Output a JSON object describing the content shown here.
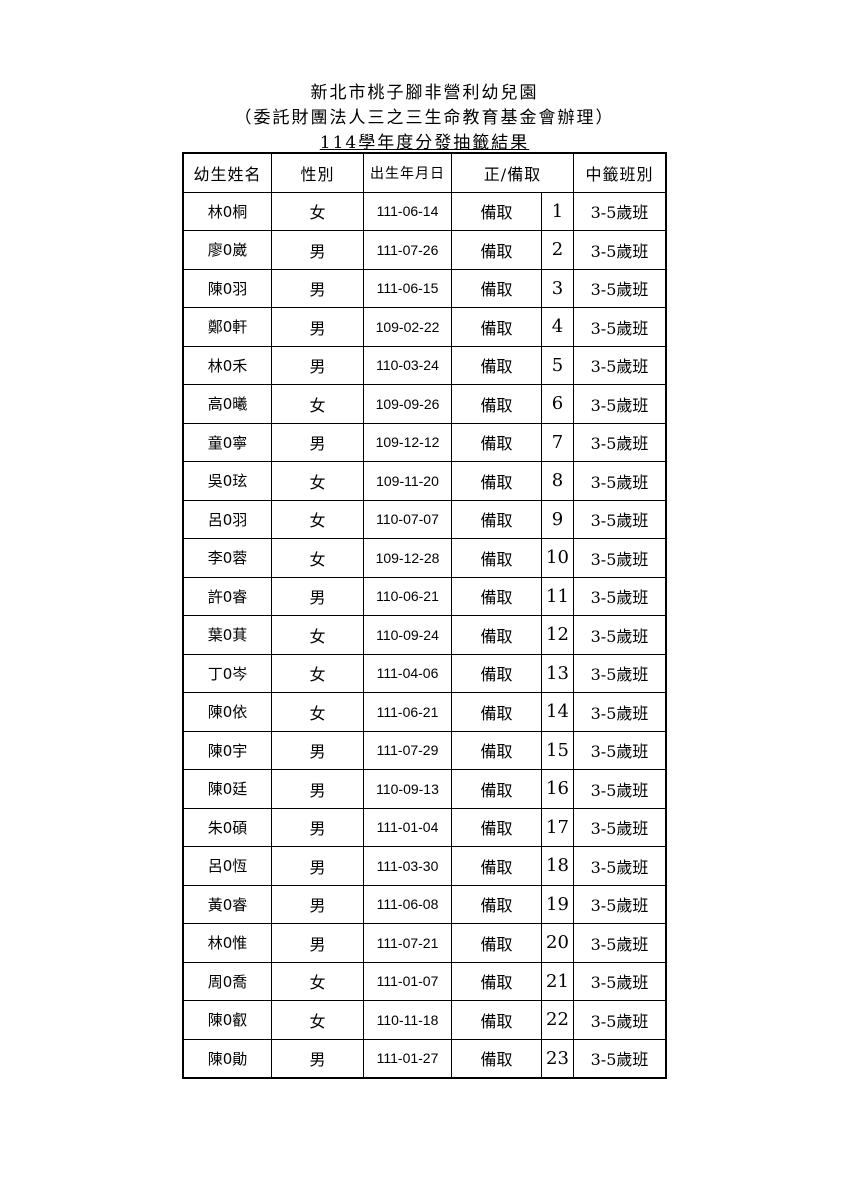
{
  "header": {
    "line1": "新北市桃子腳非營利幼兒園",
    "line2": "（委託財團法人三之三生命教育基金會辦理）",
    "line3": "114學年度分發抽籤結果"
  },
  "columns": [
    "幼生姓名",
    "性別",
    "出生年月日",
    "正/備取",
    "中籤班別"
  ],
  "rows": [
    [
      "林0桐",
      "女",
      "111-06-14",
      "備取",
      "1",
      "3-5歲班"
    ],
    [
      "廖0崴",
      "男",
      "111-07-26",
      "備取",
      "2",
      "3-5歲班"
    ],
    [
      "陳0羽",
      "男",
      "111-06-15",
      "備取",
      "3",
      "3-5歲班"
    ],
    [
      "鄭0軒",
      "男",
      "109-02-22",
      "備取",
      "4",
      "3-5歲班"
    ],
    [
      "林0禾",
      "男",
      "110-03-24",
      "備取",
      "5",
      "3-5歲班"
    ],
    [
      "高0曦",
      "女",
      "109-09-26",
      "備取",
      "6",
      "3-5歲班"
    ],
    [
      "童0寧",
      "男",
      "109-12-12",
      "備取",
      "7",
      "3-5歲班"
    ],
    [
      "吳0玹",
      "女",
      "109-11-20",
      "備取",
      "8",
      "3-5歲班"
    ],
    [
      "呂0羽",
      "女",
      "110-07-07",
      "備取",
      "9",
      "3-5歲班"
    ],
    [
      "李0蓉",
      "女",
      "109-12-28",
      "備取",
      "10",
      "3-5歲班"
    ],
    [
      "許0睿",
      "男",
      "110-06-21",
      "備取",
      "11",
      "3-5歲班"
    ],
    [
      "葉0萁",
      "女",
      "110-09-24",
      "備取",
      "12",
      "3-5歲班"
    ],
    [
      "丁0岑",
      "女",
      "111-04-06",
      "備取",
      "13",
      "3-5歲班"
    ],
    [
      "陳0依",
      "女",
      "111-06-21",
      "備取",
      "14",
      "3-5歲班"
    ],
    [
      "陳0宇",
      "男",
      "111-07-29",
      "備取",
      "15",
      "3-5歲班"
    ],
    [
      "陳0廷",
      "男",
      "110-09-13",
      "備取",
      "16",
      "3-5歲班"
    ],
    [
      "朱0碩",
      "男",
      "111-01-04",
      "備取",
      "17",
      "3-5歲班"
    ],
    [
      "呂0恆",
      "男",
      "111-03-30",
      "備取",
      "18",
      "3-5歲班"
    ],
    [
      "黃0睿",
      "男",
      "111-06-08",
      "備取",
      "19",
      "3-5歲班"
    ],
    [
      "林0惟",
      "男",
      "111-07-21",
      "備取",
      "20",
      "3-5歲班"
    ],
    [
      "周0喬",
      "女",
      "111-01-07",
      "備取",
      "21",
      "3-5歲班"
    ],
    [
      "陳0叡",
      "女",
      "110-11-18",
      "備取",
      "22",
      "3-5歲班"
    ],
    [
      "陳0勛",
      "男",
      "111-01-27",
      "備取",
      "23",
      "3-5歲班"
    ]
  ]
}
